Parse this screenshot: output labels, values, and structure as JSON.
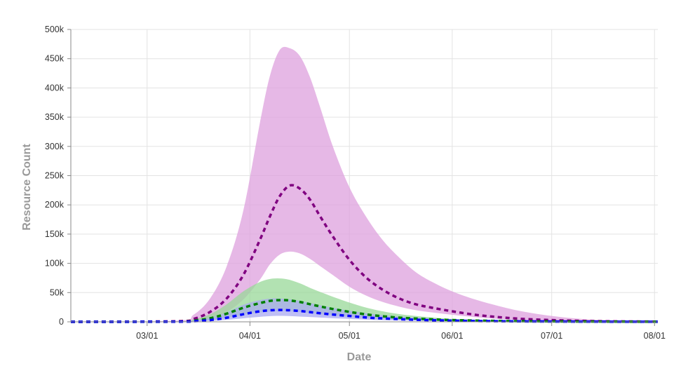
{
  "chart_data": {
    "type": "area",
    "xlabel": "Date",
    "ylabel": "Resource Count",
    "x_ticks": [
      "03/01",
      "04/01",
      "05/01",
      "06/01",
      "07/01",
      "08/01"
    ],
    "y_ticks": [
      "0",
      "50k",
      "100k",
      "150k",
      "200k",
      "250k",
      "300k",
      "350k",
      "400k",
      "450k",
      "500k"
    ],
    "ylim": [
      0,
      500000
    ],
    "xlim": [
      "2020-02-07",
      "2020-08-02"
    ],
    "grid": true,
    "legend": "none",
    "series": [
      {
        "color": "#800080",
        "band_color": "#dda0dd",
        "style": "dashed",
        "x": [
          "2020-02-07",
          "2020-03-10",
          "2020-03-15",
          "2020-03-20",
          "2020-03-25",
          "2020-03-30",
          "2020-04-04",
          "2020-04-07",
          "2020-04-10",
          "2020-04-13",
          "2020-04-16",
          "2020-04-19",
          "2020-04-22",
          "2020-04-26",
          "2020-05-01",
          "2020-05-06",
          "2020-05-11",
          "2020-05-16",
          "2020-05-21",
          "2020-05-26",
          "2020-06-01",
          "2020-06-08",
          "2020-06-15",
          "2020-06-22",
          "2020-07-01",
          "2020-07-10",
          "2020-07-20",
          "2020-08-02"
        ],
        "values": [
          0,
          1000,
          5000,
          17000,
          40000,
          80000,
          140000,
          180000,
          215000,
          233000,
          228000,
          210000,
          182000,
          146000,
          106000,
          76000,
          55000,
          40000,
          30000,
          24000,
          18000,
          12000,
          8000,
          5000,
          3000,
          1500,
          800,
          300
        ],
        "upper": [
          0,
          2000,
          12000,
          40000,
          95000,
          190000,
          340000,
          420000,
          465000,
          468000,
          455000,
          420000,
          370000,
          300000,
          230000,
          180000,
          140000,
          110000,
          85000,
          68000,
          52000,
          38000,
          27000,
          18000,
          10000,
          5000,
          2500,
          1000
        ],
        "lower": [
          0,
          500,
          2000,
          7000,
          17000,
          38000,
          72000,
          98000,
          115000,
          120000,
          117000,
          108000,
          96000,
          80000,
          60000,
          45000,
          34000,
          26000,
          20000,
          16000,
          12000,
          8000,
          5000,
          3000,
          2000,
          1000,
          500,
          200
        ]
      },
      {
        "color": "#008000",
        "band_color": "#98d898",
        "style": "dashed",
        "x": [
          "2020-02-07",
          "2020-03-10",
          "2020-03-15",
          "2020-03-20",
          "2020-03-25",
          "2020-03-30",
          "2020-04-04",
          "2020-04-08",
          "2020-04-12",
          "2020-04-16",
          "2020-04-20",
          "2020-04-25",
          "2020-05-01",
          "2020-05-07",
          "2020-05-14",
          "2020-05-21",
          "2020-06-01",
          "2020-06-15",
          "2020-07-01",
          "2020-07-20",
          "2020-08-02"
        ],
        "values": [
          0,
          300,
          2000,
          6000,
          14000,
          24000,
          32000,
          36500,
          37000,
          34000,
          29000,
          23000,
          17000,
          12000,
          8000,
          5500,
          3000,
          1500,
          700,
          300,
          100
        ],
        "upper": [
          0,
          700,
          4000,
          13000,
          30000,
          52000,
          68000,
          74000,
          73000,
          66000,
          56000,
          45000,
          33000,
          23000,
          15000,
          10000,
          5000,
          2000,
          1000,
          500,
          200
        ],
        "lower": [
          0,
          100,
          900,
          3000,
          7000,
          12000,
          16000,
          18000,
          18500,
          17000,
          14500,
          11500,
          8500,
          6000,
          4000,
          2500,
          1500,
          700,
          300,
          100,
          50
        ]
      },
      {
        "color": "#0000ff",
        "band_color": "#aaaaf0",
        "style": "dashed",
        "x": [
          "2020-02-07",
          "2020-03-10",
          "2020-03-15",
          "2020-03-20",
          "2020-03-25",
          "2020-03-30",
          "2020-04-04",
          "2020-04-08",
          "2020-04-12",
          "2020-04-16",
          "2020-04-20",
          "2020-04-25",
          "2020-05-01",
          "2020-05-07",
          "2020-05-14",
          "2020-05-21",
          "2020-06-01",
          "2020-06-15",
          "2020-07-01",
          "2020-07-20",
          "2020-08-02"
        ],
        "values": [
          0,
          200,
          1000,
          3000,
          7000,
          13000,
          18000,
          20000,
          20000,
          18500,
          16000,
          13000,
          10000,
          7000,
          5000,
          3500,
          2000,
          1000,
          500,
          200,
          100
        ],
        "upper": [
          0,
          400,
          2000,
          7000,
          16000,
          29000,
          37000,
          40000,
          39000,
          36000,
          31000,
          25000,
          19000,
          14000,
          10000,
          7000,
          4000,
          2000,
          1000,
          400,
          150
        ],
        "lower": [
          0,
          100,
          500,
          1500,
          3500,
          6000,
          8500,
          10000,
          10000,
          9000,
          8000,
          6500,
          5000,
          3500,
          2500,
          1700,
          1000,
          500,
          250,
          100,
          50
        ]
      }
    ]
  }
}
